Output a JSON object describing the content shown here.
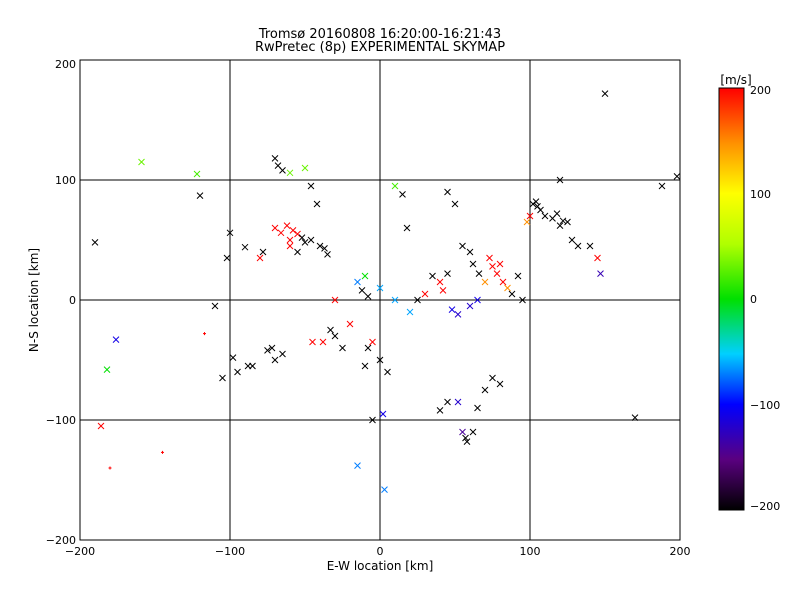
{
  "chart_data": {
    "type": "scatter",
    "title": "Tromsø 20160808 16:20:00-16:21:43",
    "subtitle": "RwPretec (8p) EXPERIMENTAL SKYMAP",
    "xlabel": "E-W location [km]",
    "ylabel": "N-S location [km]",
    "xlim": [
      -200,
      200
    ],
    "ylim": [
      -200,
      200
    ],
    "xticks": [
      "−200",
      "−100",
      "0",
      "100",
      "200"
    ],
    "yticks": [
      "−200",
      "−100",
      "0",
      "100",
      "200"
    ],
    "grid": true,
    "colorbar": {
      "label": "[m/s]",
      "range": [
        -200,
        200
      ],
      "ticks": [
        "−200",
        "−100",
        "0",
        "100",
        "200"
      ],
      "colormap": "black-purple-blue-cyan-green-yellow-red"
    },
    "points": [
      [
        -190,
        48,
        "x",
        -200
      ],
      [
        -186,
        -105,
        "x",
        200
      ],
      [
        -180,
        -140,
        "+",
        200
      ],
      [
        -176,
        -33,
        "x",
        -110
      ],
      [
        -159,
        115,
        "x",
        30
      ],
      [
        -145,
        -127,
        "+",
        200
      ],
      [
        -120,
        87,
        "x",
        -200
      ],
      [
        -117,
        -28,
        "+",
        200
      ],
      [
        -110,
        -5,
        "x",
        -200
      ],
      [
        -105,
        -65,
        "x",
        -200
      ],
      [
        -102,
        35,
        "x",
        -200
      ],
      [
        -100,
        56,
        "x",
        -200
      ],
      [
        -98,
        -48,
        "x",
        -200
      ],
      [
        -95,
        -60,
        "x",
        -200
      ],
      [
        -90,
        44,
        "x",
        -200
      ],
      [
        -88,
        -55,
        "x",
        -200
      ],
      [
        -85,
        -55,
        "x",
        -200
      ],
      [
        -80,
        35,
        "x",
        200
      ],
      [
        -78,
        40,
        "x",
        -200
      ],
      [
        -75,
        -42,
        "x",
        -200
      ],
      [
        -72,
        -40,
        "x",
        -200
      ],
      [
        -70,
        -50,
        "x",
        -200
      ],
      [
        -65,
        -45,
        "x",
        -200
      ],
      [
        -70,
        60,
        "x",
        200
      ],
      [
        -66,
        56,
        "x",
        200
      ],
      [
        -62,
        62,
        "x",
        200
      ],
      [
        -58,
        58,
        "x",
        200
      ],
      [
        -55,
        55,
        "x",
        200
      ],
      [
        -60,
        50,
        "x",
        200
      ],
      [
        -52,
        52,
        "x",
        -200
      ],
      [
        -50,
        48,
        "x",
        -200
      ],
      [
        -46,
        50,
        "x",
        -200
      ],
      [
        -70,
        118,
        "x",
        -200
      ],
      [
        -68,
        112,
        "x",
        -200
      ],
      [
        -65,
        108,
        "x",
        -200
      ],
      [
        -60,
        106,
        "x",
        30
      ],
      [
        -50,
        110,
        "x",
        30
      ],
      [
        -46,
        95,
        "x",
        -200
      ],
      [
        -42,
        80,
        "x",
        -200
      ],
      [
        -37,
        43,
        "x",
        -200
      ],
      [
        -35,
        38,
        "x",
        -200
      ],
      [
        -33,
        -25,
        "x",
        -200
      ],
      [
        -30,
        -30,
        "x",
        -200
      ],
      [
        -25,
        -40,
        "x",
        -200
      ],
      [
        -10,
        -55,
        "x",
        -200
      ],
      [
        -8,
        -40,
        "x",
        -200
      ],
      [
        0,
        -50,
        "x",
        -200
      ],
      [
        5,
        -60,
        "x",
        -200
      ],
      [
        -5,
        -100,
        "x",
        -200
      ],
      [
        2,
        -95,
        "x",
        -110
      ],
      [
        -15,
        -138,
        "x",
        -70
      ],
      [
        3,
        -158,
        "x",
        -70
      ],
      [
        10,
        95,
        "x",
        20
      ],
      [
        15,
        88,
        "x",
        -200
      ],
      [
        18,
        60,
        "x",
        -200
      ],
      [
        40,
        -92,
        "x",
        -200
      ],
      [
        45,
        -85,
        "x",
        -200
      ],
      [
        52,
        -85,
        "x",
        -120
      ],
      [
        55,
        -110,
        "x",
        -140
      ],
      [
        57,
        -115,
        "x",
        -200
      ],
      [
        58,
        -118,
        "x",
        -200
      ],
      [
        62,
        -110,
        "x",
        -200
      ],
      [
        65,
        -90,
        "x",
        -200
      ],
      [
        70,
        -75,
        "x",
        -200
      ],
      [
        75,
        -65,
        "x",
        -200
      ],
      [
        80,
        -70,
        "x",
        -200
      ],
      [
        45,
        90,
        "x",
        -200
      ],
      [
        50,
        80,
        "x",
        -200
      ],
      [
        55,
        45,
        "x",
        -200
      ],
      [
        60,
        40,
        "x",
        -200
      ],
      [
        62,
        30,
        "x",
        -200
      ],
      [
        66,
        22,
        "x",
        -200
      ],
      [
        70,
        15,
        "x",
        150
      ],
      [
        73,
        35,
        "x",
        200
      ],
      [
        75,
        28,
        "x",
        200
      ],
      [
        78,
        22,
        "x",
        200
      ],
      [
        80,
        30,
        "x",
        200
      ],
      [
        82,
        15,
        "x",
        200
      ],
      [
        85,
        10,
        "x",
        150
      ],
      [
        88,
        5,
        "x",
        -200
      ],
      [
        92,
        20,
        "x",
        -200
      ],
      [
        95,
        0,
        "x",
        -200
      ],
      [
        98,
        65,
        "x",
        150
      ],
      [
        100,
        70,
        "x",
        200
      ],
      [
        102,
        80,
        "x",
        -200
      ],
      [
        104,
        82,
        "x",
        -200
      ],
      [
        105,
        78,
        "x",
        -200
      ],
      [
        107,
        75,
        "x",
        -200
      ],
      [
        110,
        70,
        "x",
        -200
      ],
      [
        115,
        68,
        "x",
        -200
      ],
      [
        118,
        72,
        "x",
        -200
      ],
      [
        120,
        62,
        "x",
        -200
      ],
      [
        122,
        66,
        "x",
        -200
      ],
      [
        125,
        65,
        "x",
        -200
      ],
      [
        128,
        50,
        "x",
        -200
      ],
      [
        132,
        45,
        "x",
        -200
      ],
      [
        140,
        45,
        "x",
        -200
      ],
      [
        145,
        35,
        "x",
        200
      ],
      [
        147,
        22,
        "x",
        -130
      ],
      [
        150,
        172,
        "x",
        -200
      ],
      [
        120,
        100,
        "x",
        -200
      ],
      [
        170,
        -98,
        "x",
        -200
      ],
      [
        188,
        95,
        "x",
        -200
      ],
      [
        198,
        103,
        "x",
        -200
      ],
      [
        -122,
        105,
        "x",
        20
      ],
      [
        -182,
        -58,
        "x",
        0
      ],
      [
        60,
        -5,
        "x",
        -120
      ],
      [
        65,
        0,
        "x",
        -110
      ],
      [
        52,
        -12,
        "x",
        -120
      ],
      [
        48,
        -8,
        "x",
        -110
      ],
      [
        42,
        8,
        "x",
        200
      ],
      [
        40,
        15,
        "x",
        200
      ],
      [
        45,
        22,
        "x",
        -200
      ],
      [
        35,
        20,
        "x",
        -200
      ],
      [
        30,
        5,
        "x",
        200
      ],
      [
        25,
        0,
        "x",
        -200
      ],
      [
        -10,
        20,
        "x",
        0
      ],
      [
        -15,
        15,
        "x",
        -70
      ],
      [
        -12,
        8,
        "x",
        -200
      ],
      [
        -8,
        3,
        "x",
        -200
      ],
      [
        0,
        10,
        "x",
        -60
      ],
      [
        10,
        0,
        "x",
        -60
      ],
      [
        20,
        -10,
        "x",
        -60
      ],
      [
        -5,
        -35,
        "x",
        200
      ],
      [
        -20,
        -20,
        "x",
        200
      ],
      [
        -30,
        0,
        "x",
        200
      ],
      [
        -38,
        -35,
        "x",
        200
      ],
      [
        -45,
        -35,
        "x",
        200
      ],
      [
        -60,
        45,
        "x",
        200
      ],
      [
        -55,
        40,
        "x",
        -200
      ],
      [
        -40,
        45,
        "x",
        -200
      ]
    ]
  }
}
